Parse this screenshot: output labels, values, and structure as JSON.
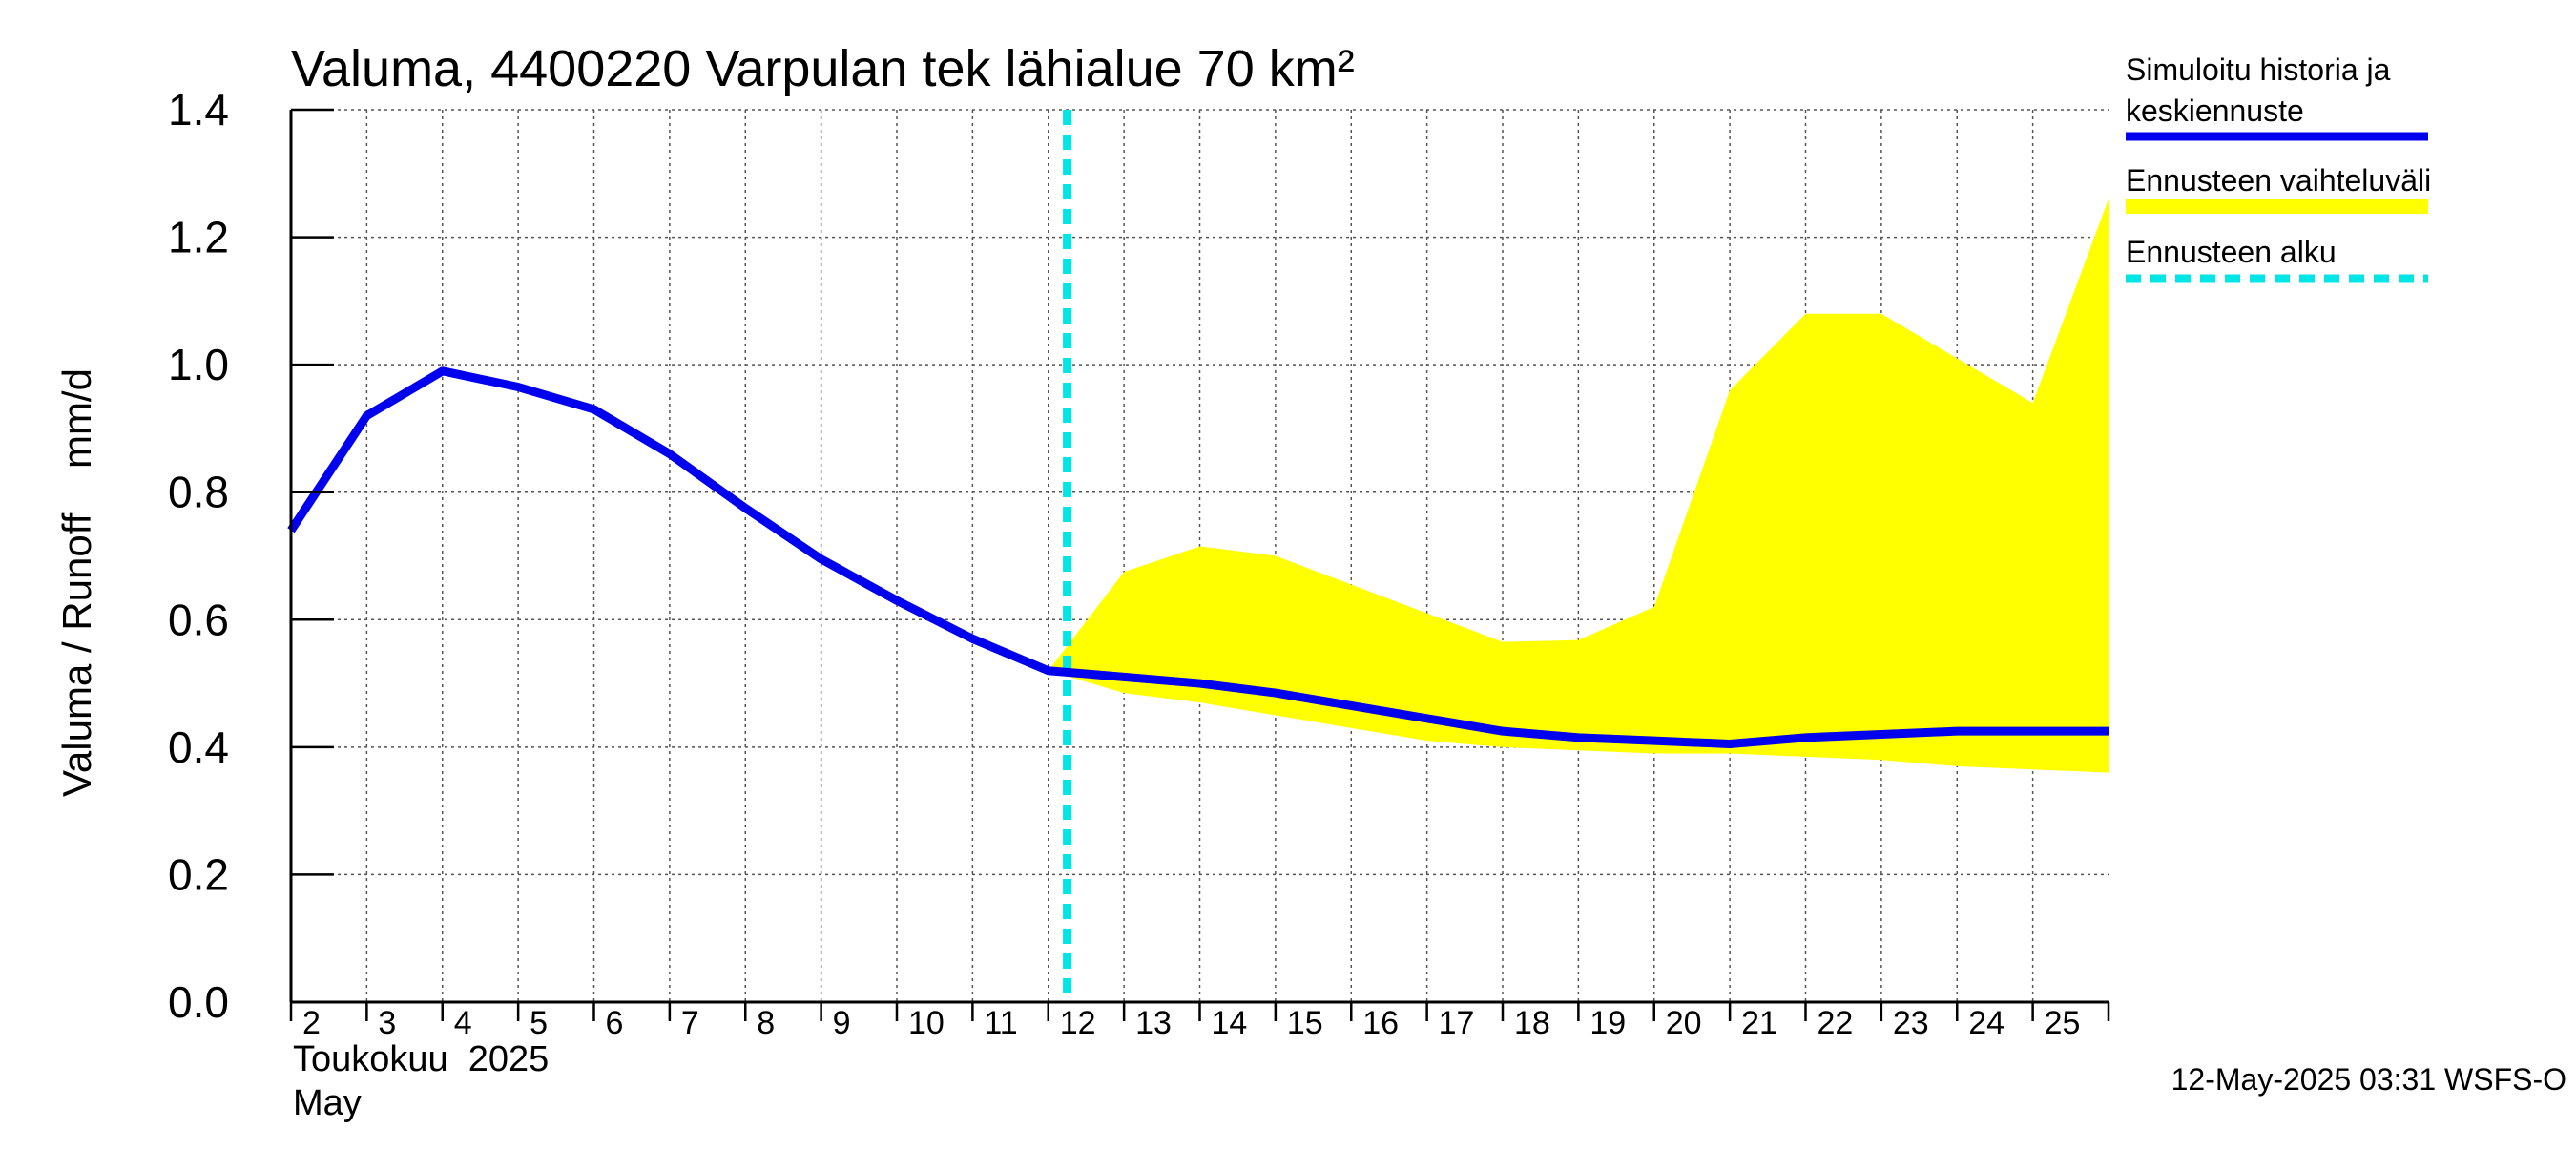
{
  "chart_data": {
    "type": "line",
    "title": "Valuma, 4400220 Varpulan tek lähialue 70 km²",
    "ylabel": "Valuma / Runoff    mm/d",
    "ylim": [
      0,
      1.4
    ],
    "yticks": [
      "0.0",
      "0.2",
      "0.4",
      "0.6",
      "0.8",
      "1.0",
      "1.2",
      "1.4"
    ],
    "x_range": [
      1.5,
      25.5
    ],
    "xticks": [
      "2",
      "3",
      "4",
      "5",
      "6",
      "7",
      "8",
      "9",
      "10",
      "11",
      "12",
      "13",
      "14",
      "15",
      "16",
      "17",
      "18",
      "19",
      "20",
      "21",
      "22",
      "23",
      "24",
      "25"
    ],
    "month_label_fi": "Toukokuu  2025",
    "month_label_en": "May",
    "grid": true,
    "legend_position": "right",
    "forecast_start_x": 11.75,
    "series": [
      {
        "name": "Simuloitu historia ja keskiennuste",
        "color": "#0000ee",
        "x": [
          1.5,
          2.5,
          3.5,
          4.5,
          5.5,
          6.5,
          7.5,
          8.5,
          9.5,
          10.5,
          11.5,
          12.5,
          13.5,
          14.5,
          15.5,
          16.5,
          17.5,
          18.5,
          19.5,
          20.5,
          21.5,
          22.5,
          23.5,
          24.5,
          25.5
        ],
        "values": [
          0.74,
          0.92,
          0.99,
          0.965,
          0.93,
          0.86,
          0.775,
          0.695,
          0.63,
          0.57,
          0.52,
          0.51,
          0.5,
          0.485,
          0.465,
          0.445,
          0.425,
          0.415,
          0.41,
          0.405,
          0.415,
          0.42,
          0.425,
          0.425,
          0.425
        ]
      },
      {
        "name": "Ennusteen vaihteluväli",
        "color": "#ffff00",
        "x": [
          11.5,
          12.5,
          13.5,
          14.5,
          15.5,
          16.5,
          17.5,
          18.5,
          19.5,
          20.5,
          21.5,
          22.5,
          23.5,
          24.5,
          25.5
        ],
        "upper": [
          0.52,
          0.675,
          0.715,
          0.7,
          0.655,
          0.61,
          0.565,
          0.568,
          0.62,
          0.96,
          1.08,
          1.08,
          1.01,
          0.94,
          1.26
        ],
        "lower": [
          0.52,
          0.485,
          0.47,
          0.45,
          0.43,
          0.41,
          0.4,
          0.395,
          0.39,
          0.39,
          0.385,
          0.38,
          0.37,
          0.365,
          0.36
        ]
      },
      {
        "name": "Ennusteen alku",
        "color": "#00e5e5"
      }
    ]
  },
  "legend": {
    "history_line1": "Simuloitu historia ja",
    "history_line2": "keskiennuste",
    "range": "Ennusteen vaihteluväli",
    "start": "Ennusteen alku"
  },
  "footer": "12-May-2025 03:31 WSFS-O"
}
